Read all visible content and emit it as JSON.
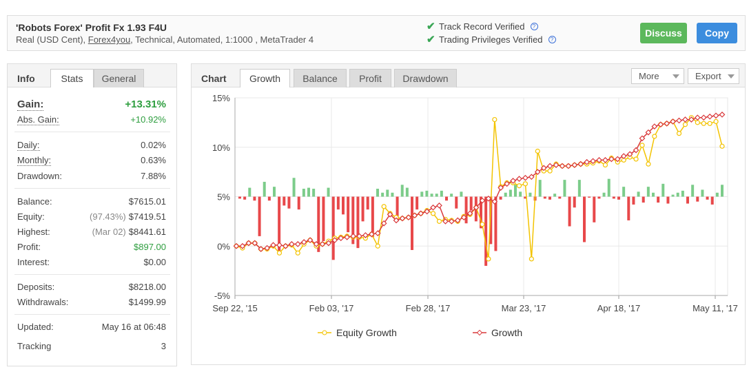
{
  "header": {
    "title": "'Robots Forex' Profit Fx 1.93 F4U",
    "sub_prefix": "Real (USD Cent), ",
    "broker": "Forex4you",
    "sub_suffix": ", Technical, Automated, 1:1000 , MetaTrader 4",
    "track_record": "Track Record Verified",
    "trading_privileges": "Trading Privileges Verified",
    "discuss": "Discuss",
    "copy": "Copy",
    "help_glyph": "?",
    "check_glyph": "✔"
  },
  "info": {
    "heading": "Info",
    "tabs": [
      "Stats",
      "General"
    ],
    "gain_label": "Gain:",
    "gain_value": "+13.31%",
    "abs_gain_label": "Abs. Gain:",
    "abs_gain_value": "+10.92%",
    "daily_label": "Daily:",
    "daily_value": "0.02%",
    "monthly_label": "Monthly:",
    "monthly_value": "0.63%",
    "drawdown_label": "Drawdown:",
    "drawdown_value": "7.88%",
    "balance_label": "Balance:",
    "balance_value": "$7615.01",
    "equity_label": "Equity:",
    "equity_pct": "(97.43%)",
    "equity_value": "$7419.51",
    "highest_label": "Highest:",
    "highest_date": "(Mar 02)",
    "highest_value": "$8441.61",
    "profit_label": "Profit:",
    "profit_value": "$897.00",
    "interest_label": "Interest:",
    "interest_value": "$0.00",
    "deposits_label": "Deposits:",
    "deposits_value": "$8218.00",
    "withdrawals_label": "Withdrawals:",
    "withdrawals_value": "$1499.99",
    "updated_label": "Updated:",
    "updated_value": "May 16 at 06:48",
    "tracking_label": "Tracking",
    "tracking_value": "3"
  },
  "chart_panel": {
    "heading": "Chart",
    "tabs": [
      "Growth",
      "Balance",
      "Profit",
      "Drawdown"
    ],
    "more": "More",
    "export": "Export"
  },
  "colors": {
    "growth": "#d9383a",
    "equity": "#f3c300",
    "bar_pos": "#7ccc8a",
    "bar_neg": "#e8484a",
    "discuss": "#5cb85c",
    "copy": "#3c8dde"
  },
  "chart_data": {
    "type": "line",
    "ylim": [
      -5,
      15
    ],
    "y_ticks": [
      "15%",
      "10%",
      "5%",
      "0%",
      "-5%"
    ],
    "x_ticks": [
      "Sep 22, '15",
      "Feb 03, '17",
      "Feb 28, '17",
      "Mar 23, '17",
      "Apr 18, '17",
      "May 11, '17"
    ],
    "legend": [
      "Equity Growth",
      "Growth"
    ],
    "series": [
      {
        "name": "Growth",
        "values": [
          0,
          0,
          0.3,
          0.3,
          -0.3,
          -0.2,
          0.1,
          0.1,
          0,
          0.2,
          0.2,
          0.4,
          0.6,
          0.2,
          0.2,
          0.3,
          0.6,
          0.8,
          0.9,
          1.0,
          1.0,
          1.1,
          1.2,
          1.3,
          2.3,
          3.2,
          2.6,
          2.8,
          2.9,
          3.1,
          3.3,
          3.5,
          3.9,
          4.1,
          2.5,
          2.5,
          2.6,
          2.9,
          3.3,
          3.9,
          4.6,
          4.8,
          4.5,
          5.9,
          6.3,
          6.6,
          6.8,
          6.9,
          7.0,
          7.5,
          7.9,
          8.1,
          8.2,
          8.1,
          8.1,
          8.2,
          8.3,
          8.5,
          8.6,
          8.7,
          8.7,
          8.8,
          8.8,
          9.1,
          9.3,
          9.7,
          10.9,
          11.5,
          12.1,
          12.3,
          12.4,
          12.6,
          12.7,
          12.8,
          12.8,
          13.0,
          13.0,
          13.1,
          13.2,
          13.3
        ]
      },
      {
        "name": "Equity Growth",
        "values": [
          0,
          -0.2,
          0.3,
          0.3,
          -0.3,
          -0.3,
          0,
          -0.7,
          0,
          0.1,
          -0.7,
          0.2,
          0.6,
          0,
          0.2,
          0.5,
          0.8,
          0.9,
          1.0,
          0.9,
          0.9,
          0.8,
          1.2,
          0,
          4.0,
          3.3,
          2.9,
          2.8,
          2.9,
          3.1,
          3.3,
          3.6,
          3.3,
          2.5,
          2.7,
          2.6,
          2.5,
          3.0,
          3.2,
          3.9,
          2.2,
          -1.3,
          12.8,
          6.0,
          6.4,
          6.4,
          6.1,
          6.3,
          -1.3,
          9.6,
          7.6,
          7.6,
          8.3,
          8.1,
          8.1,
          8.2,
          8.3,
          8.3,
          8.4,
          8.6,
          8.2,
          8.9,
          8.5,
          8.7,
          9.0,
          8.8,
          10.2,
          8.3,
          11.1,
          12.3,
          12.4,
          12.6,
          11.4,
          12.3,
          13.0,
          12.5,
          12.4,
          12.4,
          12.6,
          10.1
        ]
      },
      {
        "name": "Daily",
        "values": [
          -0.2,
          -0.3,
          0.9,
          -0.4,
          -4.0,
          1.5,
          -0.4,
          1.0,
          -5.7,
          -0.9,
          -1.2,
          1.9,
          -1.3,
          0.8,
          0.9,
          0.8,
          -5.6,
          -4.5,
          0.9,
          -6.4,
          -1.3,
          -1.8,
          -3.6,
          -4.8,
          -5.2,
          -2.5,
          -1.3,
          -4.1,
          0.8,
          0.4,
          0.7,
          0.4,
          -2.5,
          1.2,
          0.9,
          -5.4,
          -1.3,
          0.5,
          0.6,
          0.3,
          0.3,
          0.6,
          -0.4,
          0.3,
          -1.2,
          0.5,
          -2.7,
          -1.4,
          -2.5,
          -3.2,
          -7.0,
          -4.8,
          -5.5,
          -0.3,
          0.4,
          0.7,
          1.2,
          0.5,
          -0.2,
          0.4,
          -0.4,
          1.7,
          -0.2,
          -0.3,
          0.3,
          -0.2,
          1.7,
          -3.0,
          -1.1,
          1.7,
          -4.6,
          -0.1,
          -2.6,
          -0.2,
          0.4,
          1.8,
          -0.2,
          -0.3,
          1.0,
          -2.4,
          -0.8,
          0.5,
          -0.6,
          1.0,
          0.4,
          -0.6,
          1.3,
          -0.7,
          0.2,
          0.4,
          0.6,
          -0.7,
          1.2,
          -0.5,
          0.7,
          -0.3,
          -0.8,
          0.4,
          1.2
        ]
      }
    ]
  }
}
